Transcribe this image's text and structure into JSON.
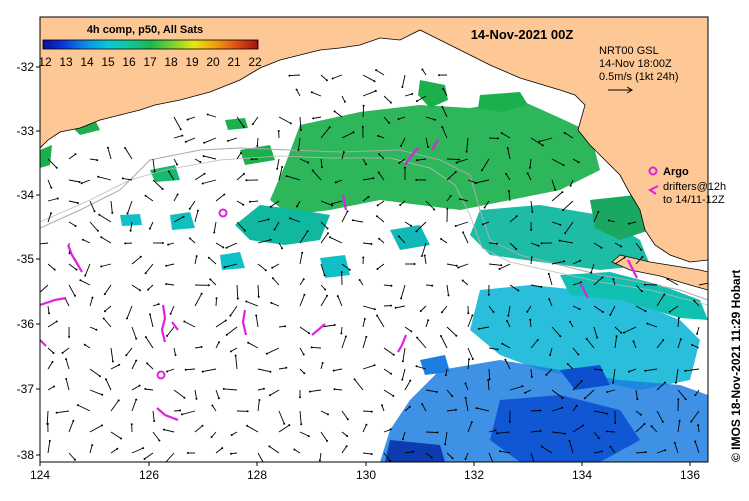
{
  "map": {
    "title": "14-Nov-2021 00Z",
    "colorbar": {
      "label": "4h comp, p50, All Sats",
      "ticks": [
        "12",
        "13",
        "14",
        "15",
        "16",
        "17",
        "18",
        "19",
        "20",
        "21",
        "22"
      ]
    },
    "axes": {
      "x_ticks": [
        "124",
        "126",
        "128",
        "130",
        "132",
        "134",
        "136"
      ],
      "y_ticks": [
        "-32",
        "-33",
        "-34",
        "-35",
        "-36",
        "-37",
        "-38"
      ]
    },
    "current_legend": {
      "line1": "NRT00 GSL",
      "line2": "14-Nov 18:00Z",
      "line3": "0.5m/s (1kt 24h)"
    },
    "argo_legend": {
      "argo_label": "Argo",
      "drifters_line1": "drifters@12h",
      "drifters_line2": "to 14/11-12Z"
    },
    "credit": "© IMOS 18-Nov-2021 11:29 Hobart",
    "colors": {
      "land": "#fdc896",
      "ocean": "#ffffff",
      "argo": "#e020e0",
      "depth_contour": "#aaaaaa"
    }
  }
}
